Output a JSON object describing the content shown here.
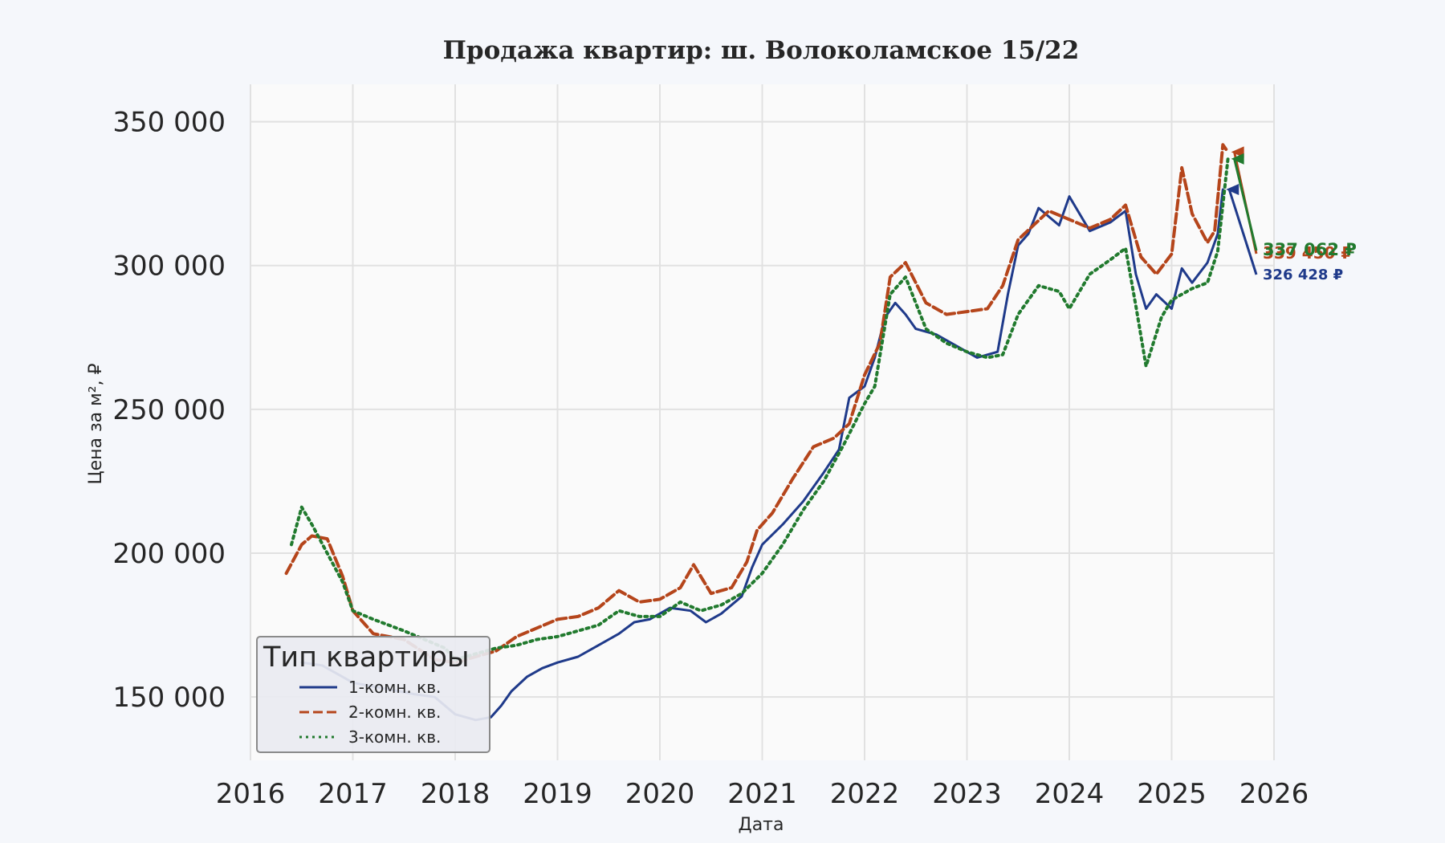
{
  "chart_data": {
    "type": "line",
    "title": "Продажа квартир: ш. Волоколамское 15/22",
    "xlabel": "Дата",
    "ylabel": "Цена за м², ₽",
    "xlim": [
      2016.0,
      2026.0
    ],
    "ylim": [
      128000,
      363000
    ],
    "x_ticks": [
      2016,
      2017,
      2018,
      2019,
      2020,
      2021,
      2022,
      2023,
      2024,
      2025,
      2026
    ],
    "x_tick_labels": [
      "2016",
      "2017",
      "2018",
      "2019",
      "2020",
      "2021",
      "2022",
      "2023",
      "2024",
      "2025",
      "2026"
    ],
    "y_ticks": [
      150000,
      200000,
      250000,
      300000,
      350000
    ],
    "y_tick_labels": [
      "150 000",
      "200 000",
      "250 000",
      "300 000",
      "350 000"
    ],
    "grid": true,
    "legend": {
      "title": "Тип квартиры",
      "position": "bottom-left"
    },
    "series": [
      {
        "name": "1-комн. кв.",
        "color": "#1f3a8a",
        "style": "solid",
        "end_label": "326 428 ₽",
        "x": [
          2016.5,
          2016.7,
          2016.9,
          2017.0,
          2017.3,
          2017.6,
          2017.8,
          2018.0,
          2018.2,
          2018.35,
          2018.45,
          2018.55,
          2018.7,
          2018.85,
          2019.0,
          2019.2,
          2019.4,
          2019.6,
          2019.75,
          2019.9,
          2020.1,
          2020.3,
          2020.45,
          2020.6,
          2020.8,
          2020.9,
          2021.0,
          2021.2,
          2021.4,
          2021.6,
          2021.75,
          2021.85,
          2022.0,
          2022.1,
          2022.2,
          2022.3,
          2022.4,
          2022.5,
          2022.7,
          2022.9,
          2023.1,
          2023.3,
          2023.4,
          2023.5,
          2023.6,
          2023.7,
          2023.9,
          2024.0,
          2024.2,
          2024.4,
          2024.55,
          2024.65,
          2024.75,
          2024.85,
          2025.0,
          2025.1,
          2025.2,
          2025.35,
          2025.45,
          2025.5
        ],
        "values": [
          162000,
          161000,
          157000,
          155000,
          153000,
          151000,
          150000,
          144000,
          142000,
          143000,
          147000,
          152000,
          157000,
          160000,
          162000,
          164000,
          168000,
          172000,
          176000,
          177000,
          181000,
          180000,
          176000,
          179000,
          185000,
          195000,
          203000,
          210000,
          218000,
          228000,
          236000,
          254000,
          258000,
          268000,
          282000,
          287000,
          283000,
          278000,
          276000,
          272000,
          268000,
          270000,
          290000,
          307000,
          311000,
          320000,
          314000,
          324000,
          312000,
          315000,
          319000,
          297000,
          285000,
          290000,
          285000,
          299000,
          294000,
          301000,
          311000,
          326428
        ]
      },
      {
        "name": "2-комн. кв.",
        "color": "#b5451b",
        "style": "dashed",
        "end_label": "339 450 ₽",
        "x": [
          2016.35,
          2016.5,
          2016.6,
          2016.75,
          2016.9,
          2017.0,
          2017.2,
          2017.5,
          2017.8,
          2018.0,
          2018.2,
          2018.4,
          2018.6,
          2018.8,
          2019.0,
          2019.2,
          2019.4,
          2019.6,
          2019.8,
          2020.0,
          2020.2,
          2020.33,
          2020.5,
          2020.7,
          2020.85,
          2020.95,
          2021.1,
          2021.3,
          2021.5,
          2021.7,
          2021.85,
          2022.0,
          2022.15,
          2022.25,
          2022.4,
          2022.6,
          2022.8,
          2023.0,
          2023.2,
          2023.35,
          2023.5,
          2023.65,
          2023.8,
          2024.0,
          2024.2,
          2024.4,
          2024.55,
          2024.7,
          2024.85,
          2025.0,
          2025.1,
          2025.2,
          2025.35,
          2025.42,
          2025.5,
          2025.55
        ],
        "values": [
          193000,
          203000,
          206000,
          205000,
          192000,
          180000,
          172000,
          170000,
          163000,
          162000,
          164000,
          166000,
          171000,
          174000,
          177000,
          178000,
          181000,
          187000,
          183000,
          184000,
          188000,
          196000,
          186000,
          188000,
          197000,
          208000,
          214000,
          226000,
          237000,
          240000,
          245000,
          262000,
          273000,
          296000,
          301000,
          287000,
          283000,
          284000,
          285000,
          293000,
          309000,
          314000,
          319000,
          316000,
          313000,
          316000,
          321000,
          303000,
          297000,
          304000,
          334000,
          318000,
          308000,
          312000,
          342000,
          339450
        ]
      },
      {
        "name": "3-комн. кв.",
        "color": "#217a2e",
        "style": "dotted",
        "end_label": "337 062 ₽",
        "x": [
          2016.4,
          2016.5,
          2016.6,
          2016.75,
          2016.9,
          2017.0,
          2017.2,
          2017.5,
          2017.7,
          2017.9,
          2018.0,
          2018.2,
          2018.4,
          2018.6,
          2018.8,
          2019.0,
          2019.2,
          2019.4,
          2019.6,
          2019.8,
          2020.0,
          2020.2,
          2020.4,
          2020.6,
          2020.8,
          2021.0,
          2021.2,
          2021.4,
          2021.6,
          2021.8,
          2022.0,
          2022.1,
          2022.25,
          2022.4,
          2022.6,
          2022.8,
          2023.0,
          2023.2,
          2023.35,
          2023.5,
          2023.7,
          2023.9,
          2024.0,
          2024.2,
          2024.4,
          2024.55,
          2024.65,
          2024.75,
          2024.9,
          2025.0,
          2025.2,
          2025.35,
          2025.45,
          2025.55
        ],
        "values": [
          203000,
          216000,
          210000,
          200000,
          190000,
          180000,
          177000,
          173000,
          170000,
          167000,
          163000,
          165000,
          167000,
          168000,
          170000,
          171000,
          173000,
          175000,
          180000,
          178000,
          178000,
          183000,
          180000,
          182000,
          186000,
          193000,
          203000,
          215000,
          225000,
          238000,
          252000,
          258000,
          290000,
          296000,
          278000,
          273000,
          270000,
          268000,
          269000,
          283000,
          293000,
          291000,
          285000,
          297000,
          302000,
          306000,
          286000,
          265000,
          282000,
          288000,
          292000,
          294000,
          305000,
          337062
        ]
      }
    ]
  }
}
